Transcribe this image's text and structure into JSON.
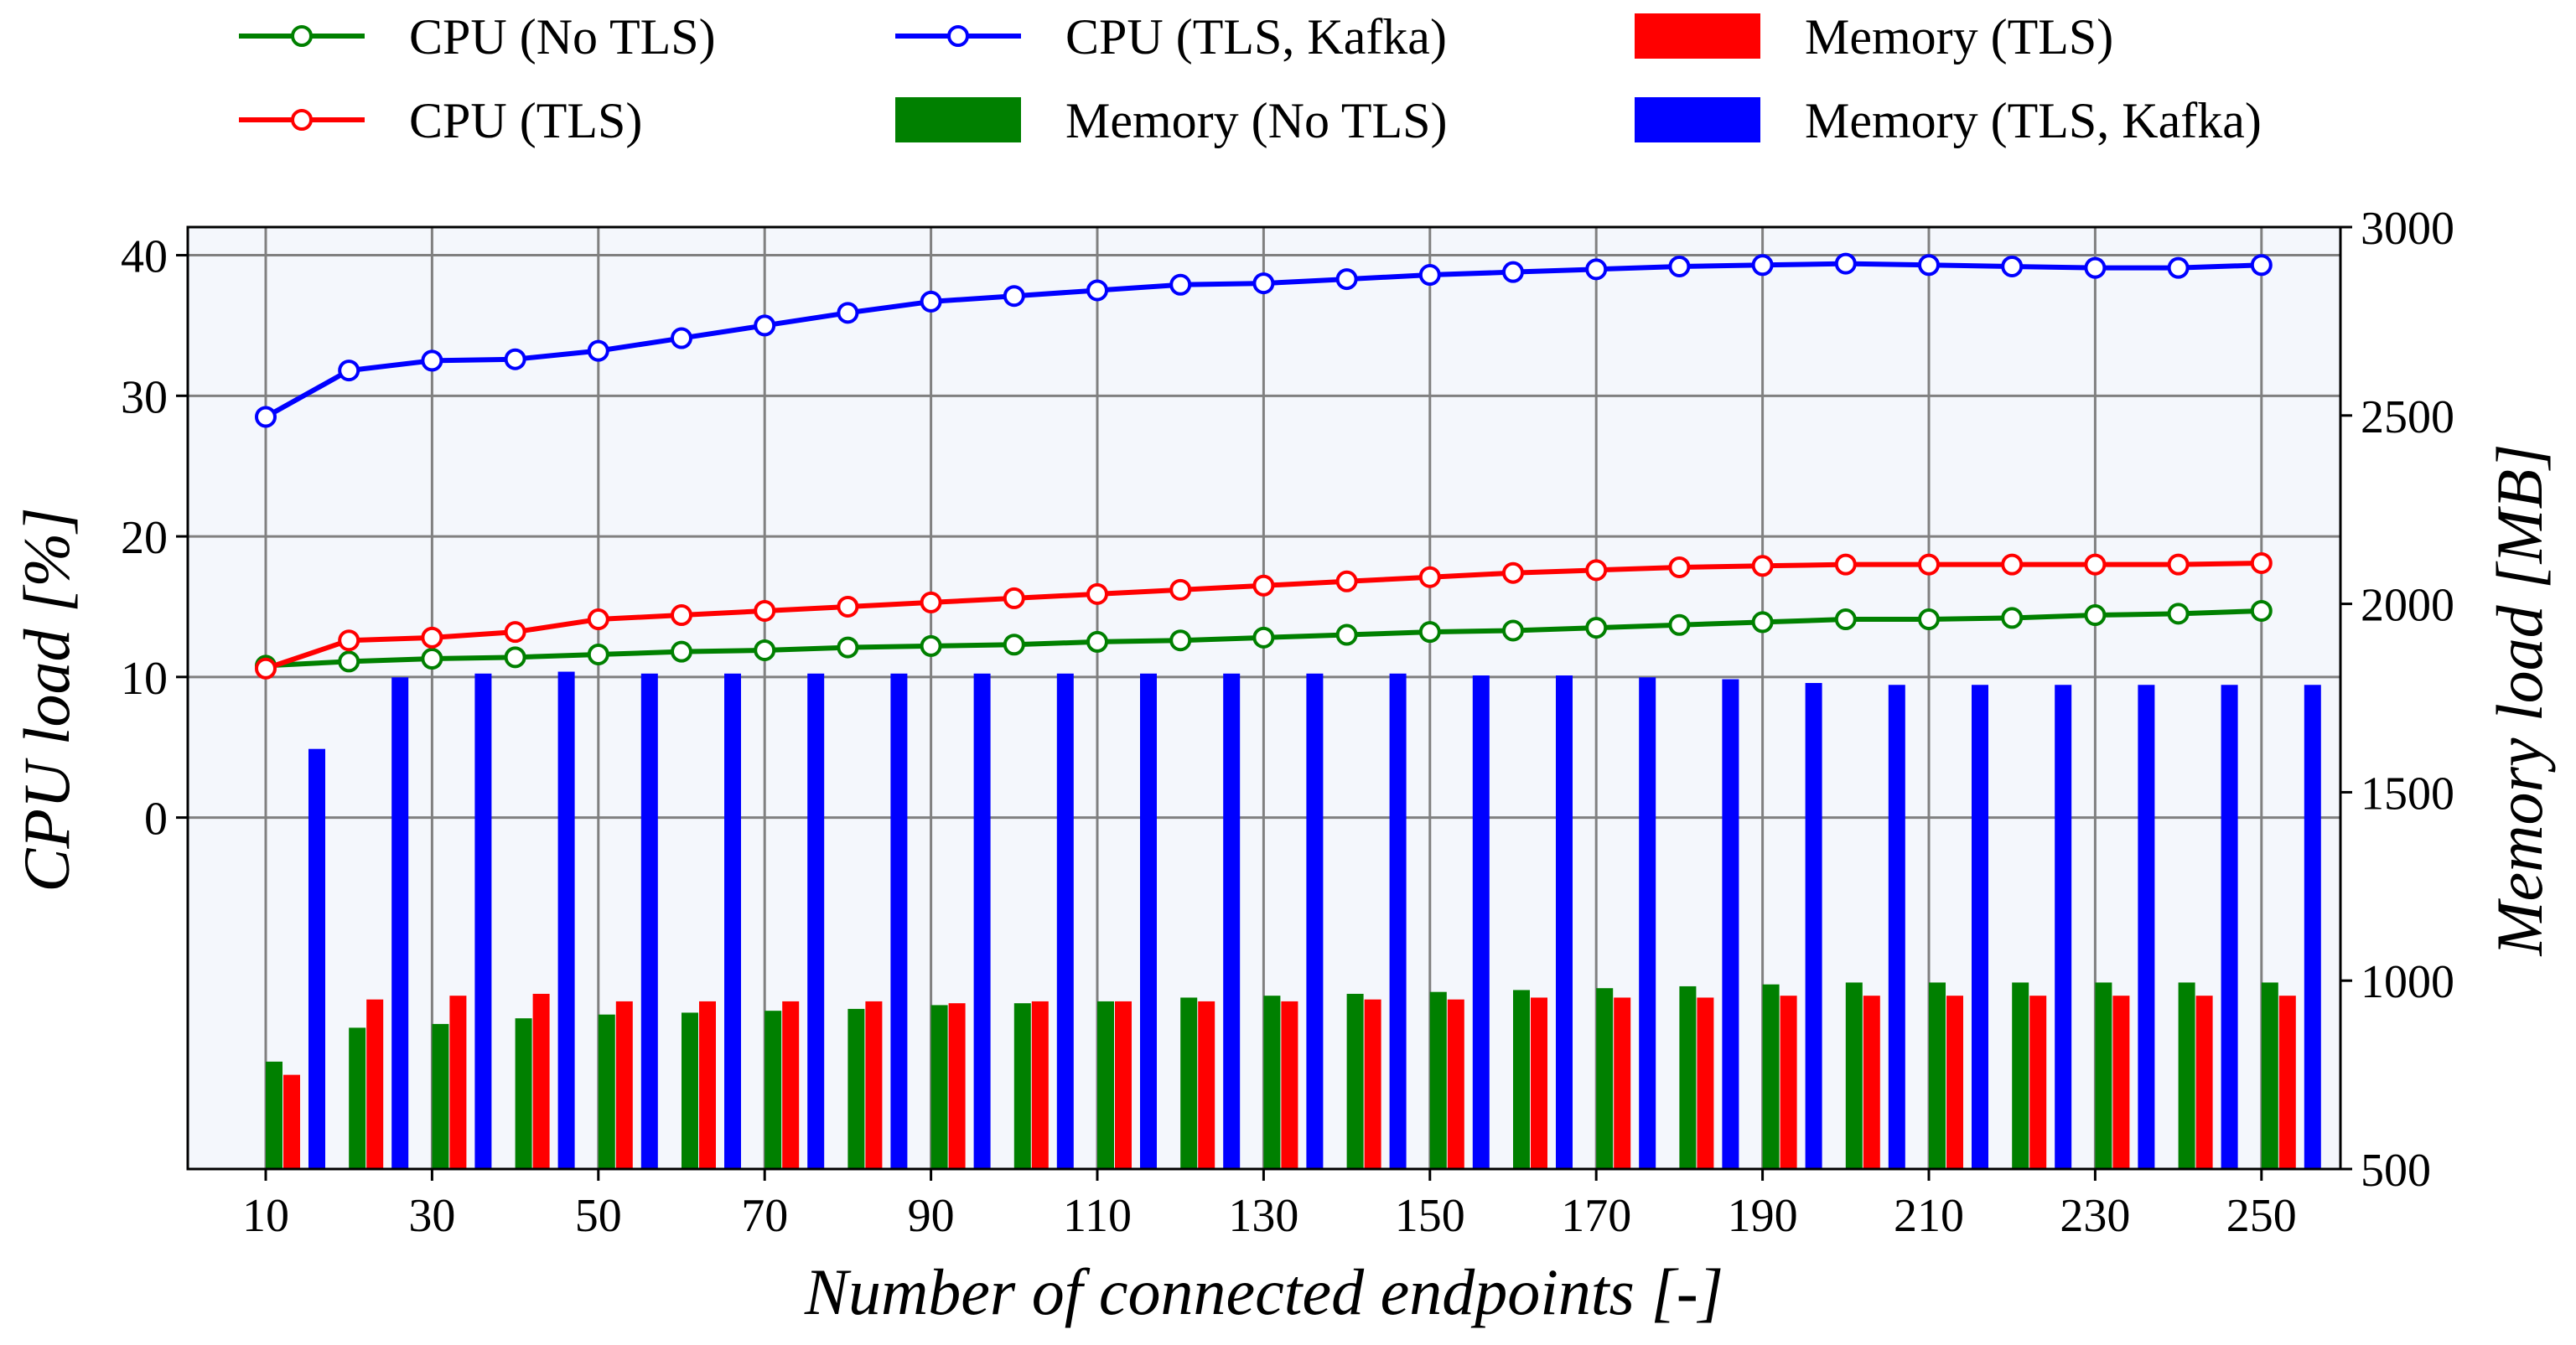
{
  "chart_data": {
    "type": "bar+line",
    "title": "",
    "xlabel": "Number of connected endpoints [-]",
    "ylabel_left": "CPU load [%]",
    "ylabel_right": "Memory load [MB]",
    "x": [
      10,
      20,
      30,
      40,
      50,
      60,
      70,
      80,
      90,
      100,
      110,
      120,
      130,
      140,
      150,
      160,
      170,
      180,
      190,
      200,
      210,
      220,
      230,
      240,
      250
    ],
    "x_tick_labels": [
      "10",
      "30",
      "50",
      "70",
      "90",
      "110",
      "130",
      "150",
      "170",
      "190",
      "210",
      "230",
      "250"
    ],
    "left_y_ticks": [
      "0",
      "10",
      "20",
      "30",
      "40"
    ],
    "left_ylim": [
      -25,
      42
    ],
    "right_y_ticks": [
      "500",
      "1000",
      "1500",
      "2000",
      "2500",
      "3000"
    ],
    "right_ylim": [
      500,
      3000
    ],
    "grid": true,
    "legend_position": "top, outside plot",
    "legend": [
      {
        "label": "CPU (No TLS)",
        "kind": "line",
        "color": "#008000"
      },
      {
        "label": "CPU (TLS)",
        "kind": "line",
        "color": "#ff0000"
      },
      {
        "label": "CPU (TLS, Kafka)",
        "kind": "line",
        "color": "#0000ff"
      },
      {
        "label": "Memory (No TLS)",
        "kind": "bar",
        "color": "#008000"
      },
      {
        "label": "Memory (TLS)",
        "kind": "bar",
        "color": "#ff0000"
      },
      {
        "label": "Memory (TLS, Kafka)",
        "kind": "bar",
        "color": "#0000ff"
      }
    ],
    "line_series": [
      {
        "name": "CPU (No TLS)",
        "color": "#008000",
        "axis": "left",
        "values": [
          10.8,
          11.1,
          11.3,
          11.4,
          11.6,
          11.8,
          11.9,
          12.1,
          12.2,
          12.3,
          12.5,
          12.6,
          12.8,
          13.0,
          13.2,
          13.3,
          13.5,
          13.7,
          13.9,
          14.1,
          14.1,
          14.2,
          14.4,
          14.5,
          14.7
        ]
      },
      {
        "name": "CPU (TLS)",
        "color": "#ff0000",
        "axis": "left",
        "values": [
          10.6,
          12.6,
          12.8,
          13.2,
          14.1,
          14.4,
          14.7,
          15.0,
          15.3,
          15.6,
          15.9,
          16.2,
          16.5,
          16.8,
          17.1,
          17.4,
          17.6,
          17.8,
          17.9,
          18.0,
          18.0,
          18.0,
          18.0,
          18.0,
          18.1
        ]
      },
      {
        "name": "CPU (TLS, Kafka)",
        "color": "#0000ff",
        "axis": "left",
        "values": [
          28.5,
          31.8,
          32.5,
          32.6,
          33.2,
          34.1,
          35.0,
          35.9,
          36.7,
          37.1,
          37.5,
          37.9,
          38.0,
          38.3,
          38.6,
          38.8,
          39.0,
          39.2,
          39.3,
          39.4,
          39.3,
          39.2,
          39.1,
          39.1,
          39.3
        ]
      }
    ],
    "bar_series": [
      {
        "name": "Memory (No TLS)",
        "color": "#008000",
        "axis": "right",
        "values": [
          785,
          875,
          885,
          900,
          910,
          915,
          920,
          925,
          935,
          940,
          945,
          955,
          960,
          965,
          970,
          975,
          980,
          985,
          990,
          995,
          995,
          995,
          995,
          995,
          995
        ]
      },
      {
        "name": "Memory (TLS)",
        "color": "#ff0000",
        "axis": "right",
        "values": [
          750,
          950,
          960,
          965,
          945,
          945,
          945,
          945,
          940,
          945,
          945,
          945,
          945,
          950,
          950,
          955,
          955,
          955,
          960,
          960,
          960,
          960,
          960,
          960,
          960
        ]
      },
      {
        "name": "Memory (TLS, Kafka)",
        "color": "#0000ff",
        "axis": "right",
        "values": [
          1615,
          1805,
          1815,
          1820,
          1815,
          1815,
          1815,
          1815,
          1815,
          1815,
          1815,
          1815,
          1815,
          1815,
          1810,
          1810,
          1805,
          1800,
          1790,
          1785,
          1785,
          1785,
          1785,
          1785,
          1785
        ]
      }
    ]
  }
}
